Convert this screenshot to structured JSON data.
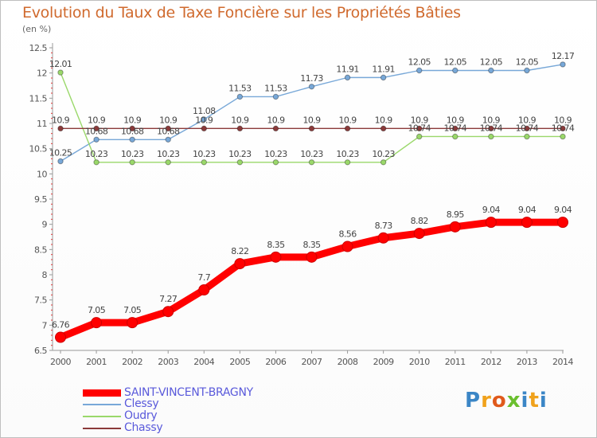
{
  "title": "Evolution du Taux de Taxe Foncière sur les Propriétés Bâties",
  "unit": "(en %)",
  "brand": {
    "letters": [
      "P",
      "r",
      "o",
      "x",
      "i",
      "t",
      "i"
    ],
    "colors": [
      "#3b86c6",
      "#f0a21c",
      "#e05a1c",
      "#6abf2e",
      "#3b86c6",
      "#f0a21c",
      "#3b86c6"
    ]
  },
  "chart_data": {
    "type": "line",
    "title": "Evolution du Taux de Taxe Foncière sur les Propriétés Bâties",
    "ylabel": "(en %)",
    "xlabel": "",
    "x": [
      "2000",
      "2001",
      "2002",
      "2003",
      "2004",
      "2005",
      "2006",
      "2007",
      "2008",
      "2009",
      "2010",
      "2011",
      "2012",
      "2013",
      "2014"
    ],
    "ylim": [
      6.5,
      12.5
    ],
    "yticks": [
      "6.5",
      "7",
      "7.5",
      "8",
      "8.5",
      "9",
      "9.5",
      "10",
      "10.5",
      "11",
      "11.5",
      "12",
      "12.5"
    ],
    "grid": false,
    "legend_position": "bottom-left",
    "series": [
      {
        "name": "SAINT-VINCENT-BRAGNY",
        "color": "#ff0000",
        "values": [
          6.76,
          7.05,
          7.05,
          7.27,
          7.7,
          8.22,
          8.35,
          8.35,
          8.56,
          8.73,
          8.82,
          8.95,
          9.04,
          9.04,
          9.04
        ],
        "labels": [
          "6.76",
          "7.05",
          "7.05",
          "7.27",
          "7.7",
          "8.22",
          "8.35",
          "8.35",
          "8.56",
          "8.73",
          "8.82",
          "8.95",
          "9.04",
          "9.04",
          "9.04"
        ]
      },
      {
        "name": "Clessy",
        "color": "#78a8d8",
        "values": [
          10.25,
          10.68,
          10.68,
          10.68,
          11.08,
          11.53,
          11.53,
          11.73,
          11.91,
          11.91,
          12.05,
          12.05,
          12.05,
          12.05,
          12.17
        ],
        "labels": [
          "10.25",
          "10.68",
          "10.68",
          "10.68",
          "11.08",
          "11.53",
          "11.53",
          "11.73",
          "11.91",
          "11.91",
          "12.05",
          "12.05",
          "12.05",
          "12.05",
          "12.17"
        ]
      },
      {
        "name": "Oudry",
        "color": "#9ad86a",
        "values": [
          12.01,
          10.23,
          10.23,
          10.23,
          10.23,
          10.23,
          10.23,
          10.23,
          10.23,
          10.23,
          10.74,
          10.74,
          10.74,
          10.74,
          10.74
        ],
        "labels": [
          "12.01",
          "10.23",
          "10.23",
          "10.23",
          "10.23",
          "10.23",
          "10.23",
          "10.23",
          "10.23",
          "10.23",
          "10.74",
          "10.74",
          "10.74",
          "10.74",
          "10.74"
        ]
      },
      {
        "name": "Chassy",
        "color": "#8b3a3a",
        "values": [
          10.9,
          10.9,
          10.9,
          10.9,
          10.9,
          10.9,
          10.9,
          10.9,
          10.9,
          10.9,
          10.9,
          10.9,
          10.9,
          10.9,
          10.9
        ],
        "labels": [
          "10.9",
          "10.9",
          "10.9",
          "10.9",
          "10.9",
          "10.9",
          "10.9",
          "10.9",
          "10.9",
          "10.9",
          "10.9",
          "10.9",
          "10.9",
          "10.9",
          "10.9"
        ]
      }
    ]
  }
}
